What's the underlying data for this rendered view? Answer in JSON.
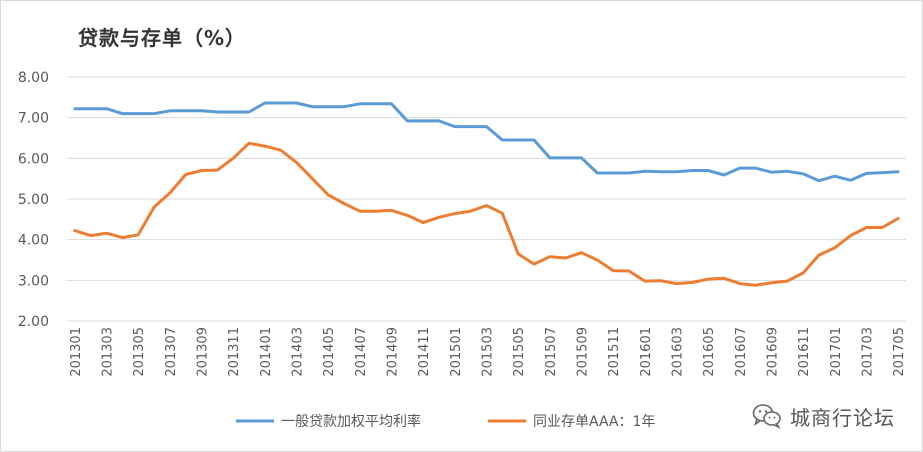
{
  "chart_data": {
    "type": "line",
    "title": "贷款与存单（%）",
    "ylim": [
      2.0,
      8.0
    ],
    "y_ticks": [
      "2.00",
      "3.00",
      "4.00",
      "5.00",
      "6.00",
      "7.00",
      "8.00"
    ],
    "x": [
      "201301",
      "201302",
      "201303",
      "201304",
      "201305",
      "201306",
      "201307",
      "201308",
      "201309",
      "201310",
      "201311",
      "201312",
      "201401",
      "201402",
      "201403",
      "201404",
      "201405",
      "201406",
      "201407",
      "201408",
      "201409",
      "201410",
      "201411",
      "201412",
      "201501",
      "201502",
      "201503",
      "201504",
      "201505",
      "201506",
      "201507",
      "201508",
      "201509",
      "201510",
      "201511",
      "201512",
      "201601",
      "201602",
      "201603",
      "201604",
      "201605",
      "201606",
      "201607",
      "201608",
      "201609",
      "201610",
      "201611",
      "201612",
      "201701",
      "201702",
      "201703",
      "201704",
      "201705"
    ],
    "x_tick_labels": [
      "201301",
      "201303",
      "201305",
      "201307",
      "201309",
      "201311",
      "201401",
      "201403",
      "201405",
      "201407",
      "201409",
      "201411",
      "201501",
      "201503",
      "201505",
      "201507",
      "201509",
      "201511",
      "201601",
      "201603",
      "201605",
      "201607",
      "201609",
      "201611",
      "201701",
      "201703",
      "201705"
    ],
    "grid": "horizontal",
    "legend_position": "bottom",
    "series": [
      {
        "name": "一般贷款加权平均利率",
        "color": "#5b9bd5",
        "values": [
          7.22,
          7.22,
          7.22,
          7.1,
          7.1,
          7.1,
          7.17,
          7.17,
          7.17,
          7.14,
          7.14,
          7.14,
          7.36,
          7.36,
          7.36,
          7.27,
          7.27,
          7.27,
          7.34,
          7.34,
          7.34,
          6.92,
          6.92,
          6.92,
          6.78,
          6.78,
          6.78,
          6.45,
          6.45,
          6.45,
          6.01,
          6.01,
          6.01,
          5.64,
          5.64,
          5.64,
          5.68,
          5.67,
          5.67,
          5.7,
          5.7,
          5.59,
          5.76,
          5.76,
          5.66,
          5.68,
          5.62,
          5.45,
          5.56,
          5.46,
          5.63,
          5.65,
          5.67
        ]
      },
      {
        "name": "同业存单AAA：1年",
        "color": "#ed7d31",
        "values": [
          4.22,
          4.1,
          4.16,
          4.05,
          4.12,
          4.8,
          5.15,
          5.6,
          5.7,
          5.71,
          6.0,
          6.37,
          6.3,
          6.2,
          5.9,
          5.5,
          5.1,
          4.89,
          4.7,
          4.7,
          4.72,
          4.6,
          4.42,
          4.55,
          4.64,
          4.7,
          4.84,
          4.65,
          3.65,
          3.4,
          3.58,
          3.55,
          3.68,
          3.5,
          3.24,
          3.23,
          2.98,
          2.99,
          2.92,
          2.95,
          3.03,
          3.05,
          2.92,
          2.88,
          2.94,
          2.98,
          3.18,
          3.62,
          3.8,
          4.1,
          4.3,
          4.3,
          4.52
        ]
      }
    ]
  },
  "watermark": {
    "text": "城商行论坛",
    "icon": "wechat-icon"
  }
}
